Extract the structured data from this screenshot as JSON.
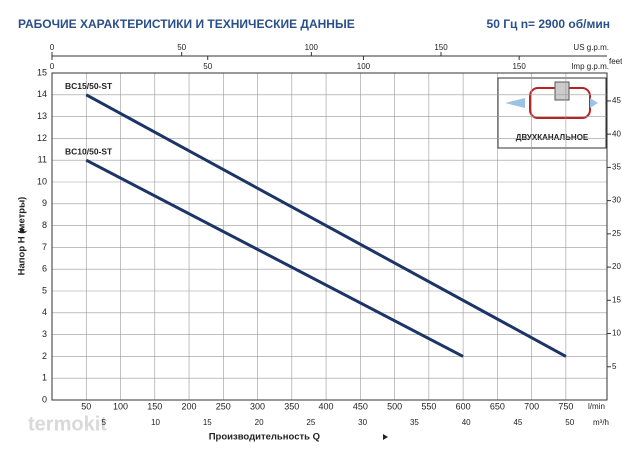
{
  "chart_data": {
    "type": "line",
    "title": "РАБОЧИЕ ХАРАКТЕРИСТИКИ И ТЕХНИЧЕСКИЕ ДАННЫЕ",
    "subtitle": "50 Гц   n= 2900 об/мин",
    "ylabel": "Напор H (метры)",
    "xlabel": "Производительность Q",
    "xunit": "l/min",
    "xlim": [
      0,
      810
    ],
    "xticks": [
      50,
      100,
      150,
      200,
      250,
      300,
      350,
      400,
      450,
      500,
      550,
      600,
      650,
      700,
      750
    ],
    "ylim": [
      0,
      15
    ],
    "yticks": [
      0,
      1,
      2,
      3,
      4,
      5,
      6,
      7,
      8,
      9,
      10,
      11,
      12,
      13,
      14,
      15
    ],
    "y2unit": "feet",
    "y2lim": [
      0,
      49.2
    ],
    "y2ticks": [
      5,
      10,
      15,
      20,
      25,
      30,
      35,
      40,
      45
    ],
    "extra_x_axes": [
      {
        "unit": "US g.p.m.",
        "lim": [
          0,
          214
        ],
        "ticks": [
          0,
          50,
          100,
          150
        ]
      },
      {
        "unit": "Imp g.p.m.",
        "lim": [
          0,
          178.2
        ],
        "ticks": [
          0,
          50,
          100,
          150
        ]
      },
      {
        "unit": "m³/h",
        "lim": [
          0,
          53.6
        ],
        "ticks": [
          5,
          10,
          15,
          20,
          25,
          30,
          35,
          40,
          45,
          50
        ]
      }
    ],
    "grid": true,
    "series": [
      {
        "name": "BC15/50-ST",
        "color": "#1c3566",
        "x": [
          50,
          750
        ],
        "values": [
          14,
          2
        ]
      },
      {
        "name": "BC10/50-ST",
        "color": "#1c3566",
        "x": [
          50,
          600
        ],
        "values": [
          11,
          2
        ]
      }
    ],
    "inset_label": "ДВУХКАНАЛЬНОЕ",
    "watermark": "termokit"
  }
}
